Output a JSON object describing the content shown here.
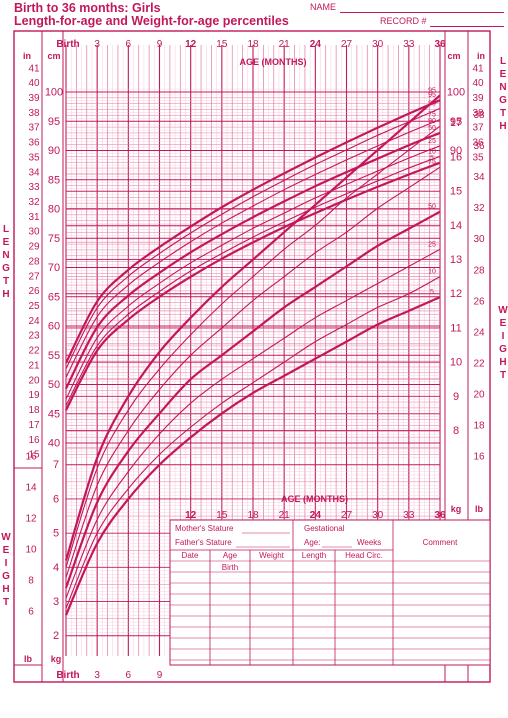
{
  "header": {
    "title": "Birth to 36 months: Girls",
    "subtitle": "Length-for-age and Weight-for-age percentiles",
    "name_label": "NAME",
    "record_label": "RECORD #"
  },
  "colors": {
    "accent": "#c2185b",
    "grid_light": "#f3b6cc",
    "grid_mid": "#e27aa0"
  },
  "chart_data": {
    "type": "line",
    "x_axis": {
      "label": "AGE (MONTHS)",
      "range": [
        0,
        36
      ],
      "tick_labels": [
        "Birth",
        "3",
        "6",
        "9",
        "12",
        "15",
        "18",
        "21",
        "24",
        "27",
        "30",
        "33",
        "36"
      ]
    },
    "length_axis": {
      "title_letters": [
        "L",
        "E",
        "N",
        "G",
        "T",
        "H"
      ],
      "cm_label": "cm",
      "in_label": "in",
      "cm_range": [
        40,
        100
      ],
      "cm_ticks": [
        "100",
        "95",
        "90",
        "85",
        "80",
        "75",
        "70",
        "65",
        "60",
        "55",
        "50",
        "45",
        "40"
      ],
      "in_ticks": [
        "41",
        "40",
        "39",
        "38",
        "37",
        "36",
        "35",
        "34",
        "33",
        "32",
        "31",
        "30",
        "29",
        "28",
        "27",
        "26",
        "25",
        "24",
        "23",
        "22",
        "21",
        "20",
        "19",
        "18",
        "17",
        "16",
        "15"
      ],
      "right_in_ticks": [
        "41",
        "40",
        "39",
        "38",
        "37",
        "36",
        "35"
      ],
      "right_cm_ticks": [
        "100",
        "95",
        "90"
      ]
    },
    "weight_axis": {
      "title_letters": [
        "W",
        "E",
        "I",
        "G",
        "H",
        "T"
      ],
      "kg_label": "kg",
      "lb_label": "lb",
      "right_kg_ticks": [
        "17",
        "16",
        "15",
        "14",
        "13",
        "12",
        "11",
        "10",
        "9",
        "8"
      ],
      "right_lb_ticks": [
        "38",
        "36",
        "34",
        "32",
        "30",
        "28",
        "26",
        "24",
        "22",
        "20",
        "18",
        "16"
      ],
      "left_kg_ticks": [
        "7",
        "6",
        "5",
        "4",
        "3",
        "2"
      ],
      "left_lb_ticks": [
        "16",
        "14",
        "12",
        "10",
        "8",
        "6"
      ]
    },
    "percentile_labels": [
      "95",
      "90",
      "75",
      "50",
      "25",
      "10",
      "5"
    ],
    "length_series": [
      {
        "name": "95",
        "x": [
          0,
          3,
          6,
          9,
          12,
          15,
          18,
          21,
          24,
          27,
          30,
          33,
          36
        ],
        "y": [
          53.7,
          64.2,
          69.6,
          73.5,
          77.0,
          80.3,
          83.3,
          86.1,
          88.8,
          91.4,
          93.9,
          96.3,
          98.6
        ]
      },
      {
        "name": "90",
        "x": [
          0,
          3,
          6,
          9,
          12,
          15,
          18,
          21,
          24,
          27,
          30,
          33,
          36
        ],
        "y": [
          52.7,
          63.1,
          68.5,
          72.4,
          75.9,
          79.1,
          82.1,
          84.9,
          87.6,
          90.1,
          92.6,
          94.9,
          97.2
        ]
      },
      {
        "name": "75",
        "x": [
          0,
          3,
          6,
          9,
          12,
          15,
          18,
          21,
          24,
          27,
          30,
          33,
          36
        ],
        "y": [
          51.2,
          61.6,
          67.0,
          70.9,
          74.4,
          77.6,
          80.5,
          83.3,
          85.9,
          88.4,
          90.8,
          93.1,
          95.3
        ]
      },
      {
        "name": "50",
        "x": [
          0,
          3,
          6,
          9,
          12,
          15,
          18,
          21,
          24,
          27,
          30,
          33,
          36
        ],
        "y": [
          49.3,
          59.8,
          65.2,
          69.1,
          72.6,
          75.7,
          78.6,
          81.3,
          83.9,
          86.3,
          88.6,
          90.9,
          93.0
        ]
      },
      {
        "name": "25",
        "x": [
          0,
          3,
          6,
          9,
          12,
          15,
          18,
          21,
          24,
          27,
          30,
          33,
          36
        ],
        "y": [
          47.5,
          58.0,
          63.4,
          67.3,
          70.8,
          73.8,
          76.7,
          79.3,
          81.9,
          84.2,
          86.5,
          88.7,
          90.8
        ]
      },
      {
        "name": "10",
        "x": [
          0,
          3,
          6,
          9,
          12,
          15,
          18,
          21,
          24,
          27,
          30,
          33,
          36
        ],
        "y": [
          46.4,
          56.6,
          62.0,
          65.9,
          69.4,
          72.4,
          75.2,
          77.8,
          80.3,
          82.6,
          84.8,
          87.0,
          89.0
        ]
      },
      {
        "name": "5",
        "x": [
          0,
          3,
          6,
          9,
          12,
          15,
          18,
          21,
          24,
          27,
          30,
          33,
          36
        ],
        "y": [
          45.6,
          55.8,
          61.1,
          65.0,
          68.4,
          71.5,
          74.3,
          76.9,
          79.3,
          81.6,
          83.8,
          85.9,
          87.9
        ]
      }
    ],
    "weight_series": [
      {
        "name": "95",
        "x": [
          0,
          3,
          6,
          9,
          12,
          15,
          18,
          21,
          24,
          27,
          30,
          33,
          36
        ],
        "y": [
          4.2,
          7.2,
          9.0,
          10.3,
          11.3,
          12.2,
          13.0,
          13.8,
          14.6,
          15.4,
          16.2,
          17.0,
          17.8
        ]
      },
      {
        "name": "90",
        "x": [
          0,
          3,
          6,
          9,
          12,
          15,
          18,
          21,
          24,
          27,
          30,
          33,
          36
        ],
        "y": [
          4.0,
          6.9,
          8.6,
          9.8,
          10.8,
          11.7,
          12.5,
          13.3,
          14.0,
          14.8,
          15.5,
          16.2,
          16.9
        ]
      },
      {
        "name": "75",
        "x": [
          0,
          3,
          6,
          9,
          12,
          15,
          18,
          21,
          24,
          27,
          30,
          33,
          36
        ],
        "y": [
          3.7,
          6.4,
          8.0,
          9.2,
          10.2,
          11.0,
          11.8,
          12.5,
          13.2,
          13.8,
          14.5,
          15.1,
          15.7
        ]
      },
      {
        "name": "50",
        "x": [
          0,
          3,
          6,
          9,
          12,
          15,
          18,
          21,
          24,
          27,
          30,
          33,
          36
        ],
        "y": [
          3.4,
          5.9,
          7.4,
          8.5,
          9.5,
          10.2,
          10.9,
          11.6,
          12.2,
          12.8,
          13.4,
          13.9,
          14.4
        ]
      },
      {
        "name": "25",
        "x": [
          0,
          3,
          6,
          9,
          12,
          15,
          18,
          21,
          24,
          27,
          30,
          33,
          36
        ],
        "y": [
          3.1,
          5.4,
          6.8,
          7.9,
          8.8,
          9.5,
          10.1,
          10.7,
          11.3,
          11.8,
          12.3,
          12.8,
          13.3
        ]
      },
      {
        "name": "10",
        "x": [
          0,
          3,
          6,
          9,
          12,
          15,
          18,
          21,
          24,
          27,
          30,
          33,
          36
        ],
        "y": [
          2.8,
          5.0,
          6.3,
          7.3,
          8.1,
          8.8,
          9.4,
          10.0,
          10.6,
          11.1,
          11.6,
          12.0,
          12.5
        ]
      },
      {
        "name": "5",
        "x": [
          0,
          3,
          6,
          9,
          12,
          15,
          18,
          21,
          24,
          27,
          30,
          33,
          36
        ],
        "y": [
          2.6,
          4.7,
          6.0,
          7.0,
          7.8,
          8.5,
          9.1,
          9.6,
          10.1,
          10.6,
          11.1,
          11.5,
          11.9
        ]
      }
    ]
  },
  "record_table": {
    "mothers_stature": "Mother's Stature",
    "fathers_stature": "Father's Stature",
    "gestational": "Gestational",
    "age_label": "Age:",
    "weeks_label": "Weeks",
    "comment": "Comment",
    "columns": [
      "Date",
      "Age",
      "Weight",
      "Length",
      "Head  Circ."
    ],
    "first_row_age": "Birth"
  }
}
